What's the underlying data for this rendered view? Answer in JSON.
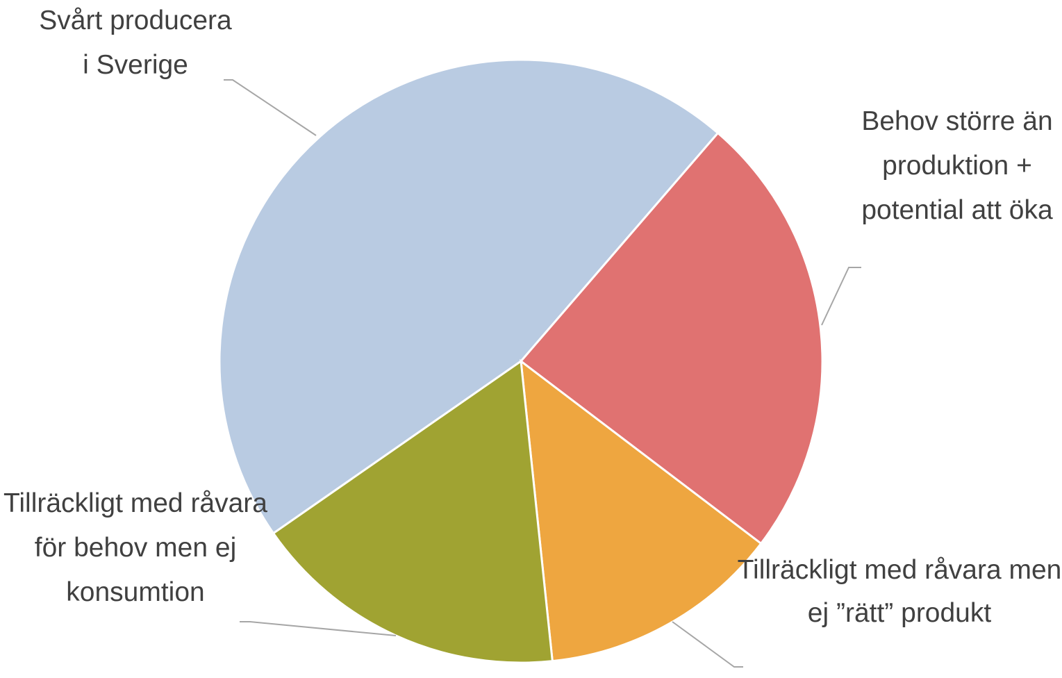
{
  "chart_data": {
    "type": "pie",
    "categories": [
      "Svårt producera i Sverige",
      "Behov större än produktion + potential att öka",
      "Tillräckligt med råvara men ej ”rätt” produkt",
      "Tillräckligt med råvara för behov men ej konsumtion"
    ],
    "values": [
      46,
      24,
      13,
      17
    ],
    "colors": [
      "#b9cbe2",
      "#e07271",
      "#eea640",
      "#a0a332"
    ]
  }
}
